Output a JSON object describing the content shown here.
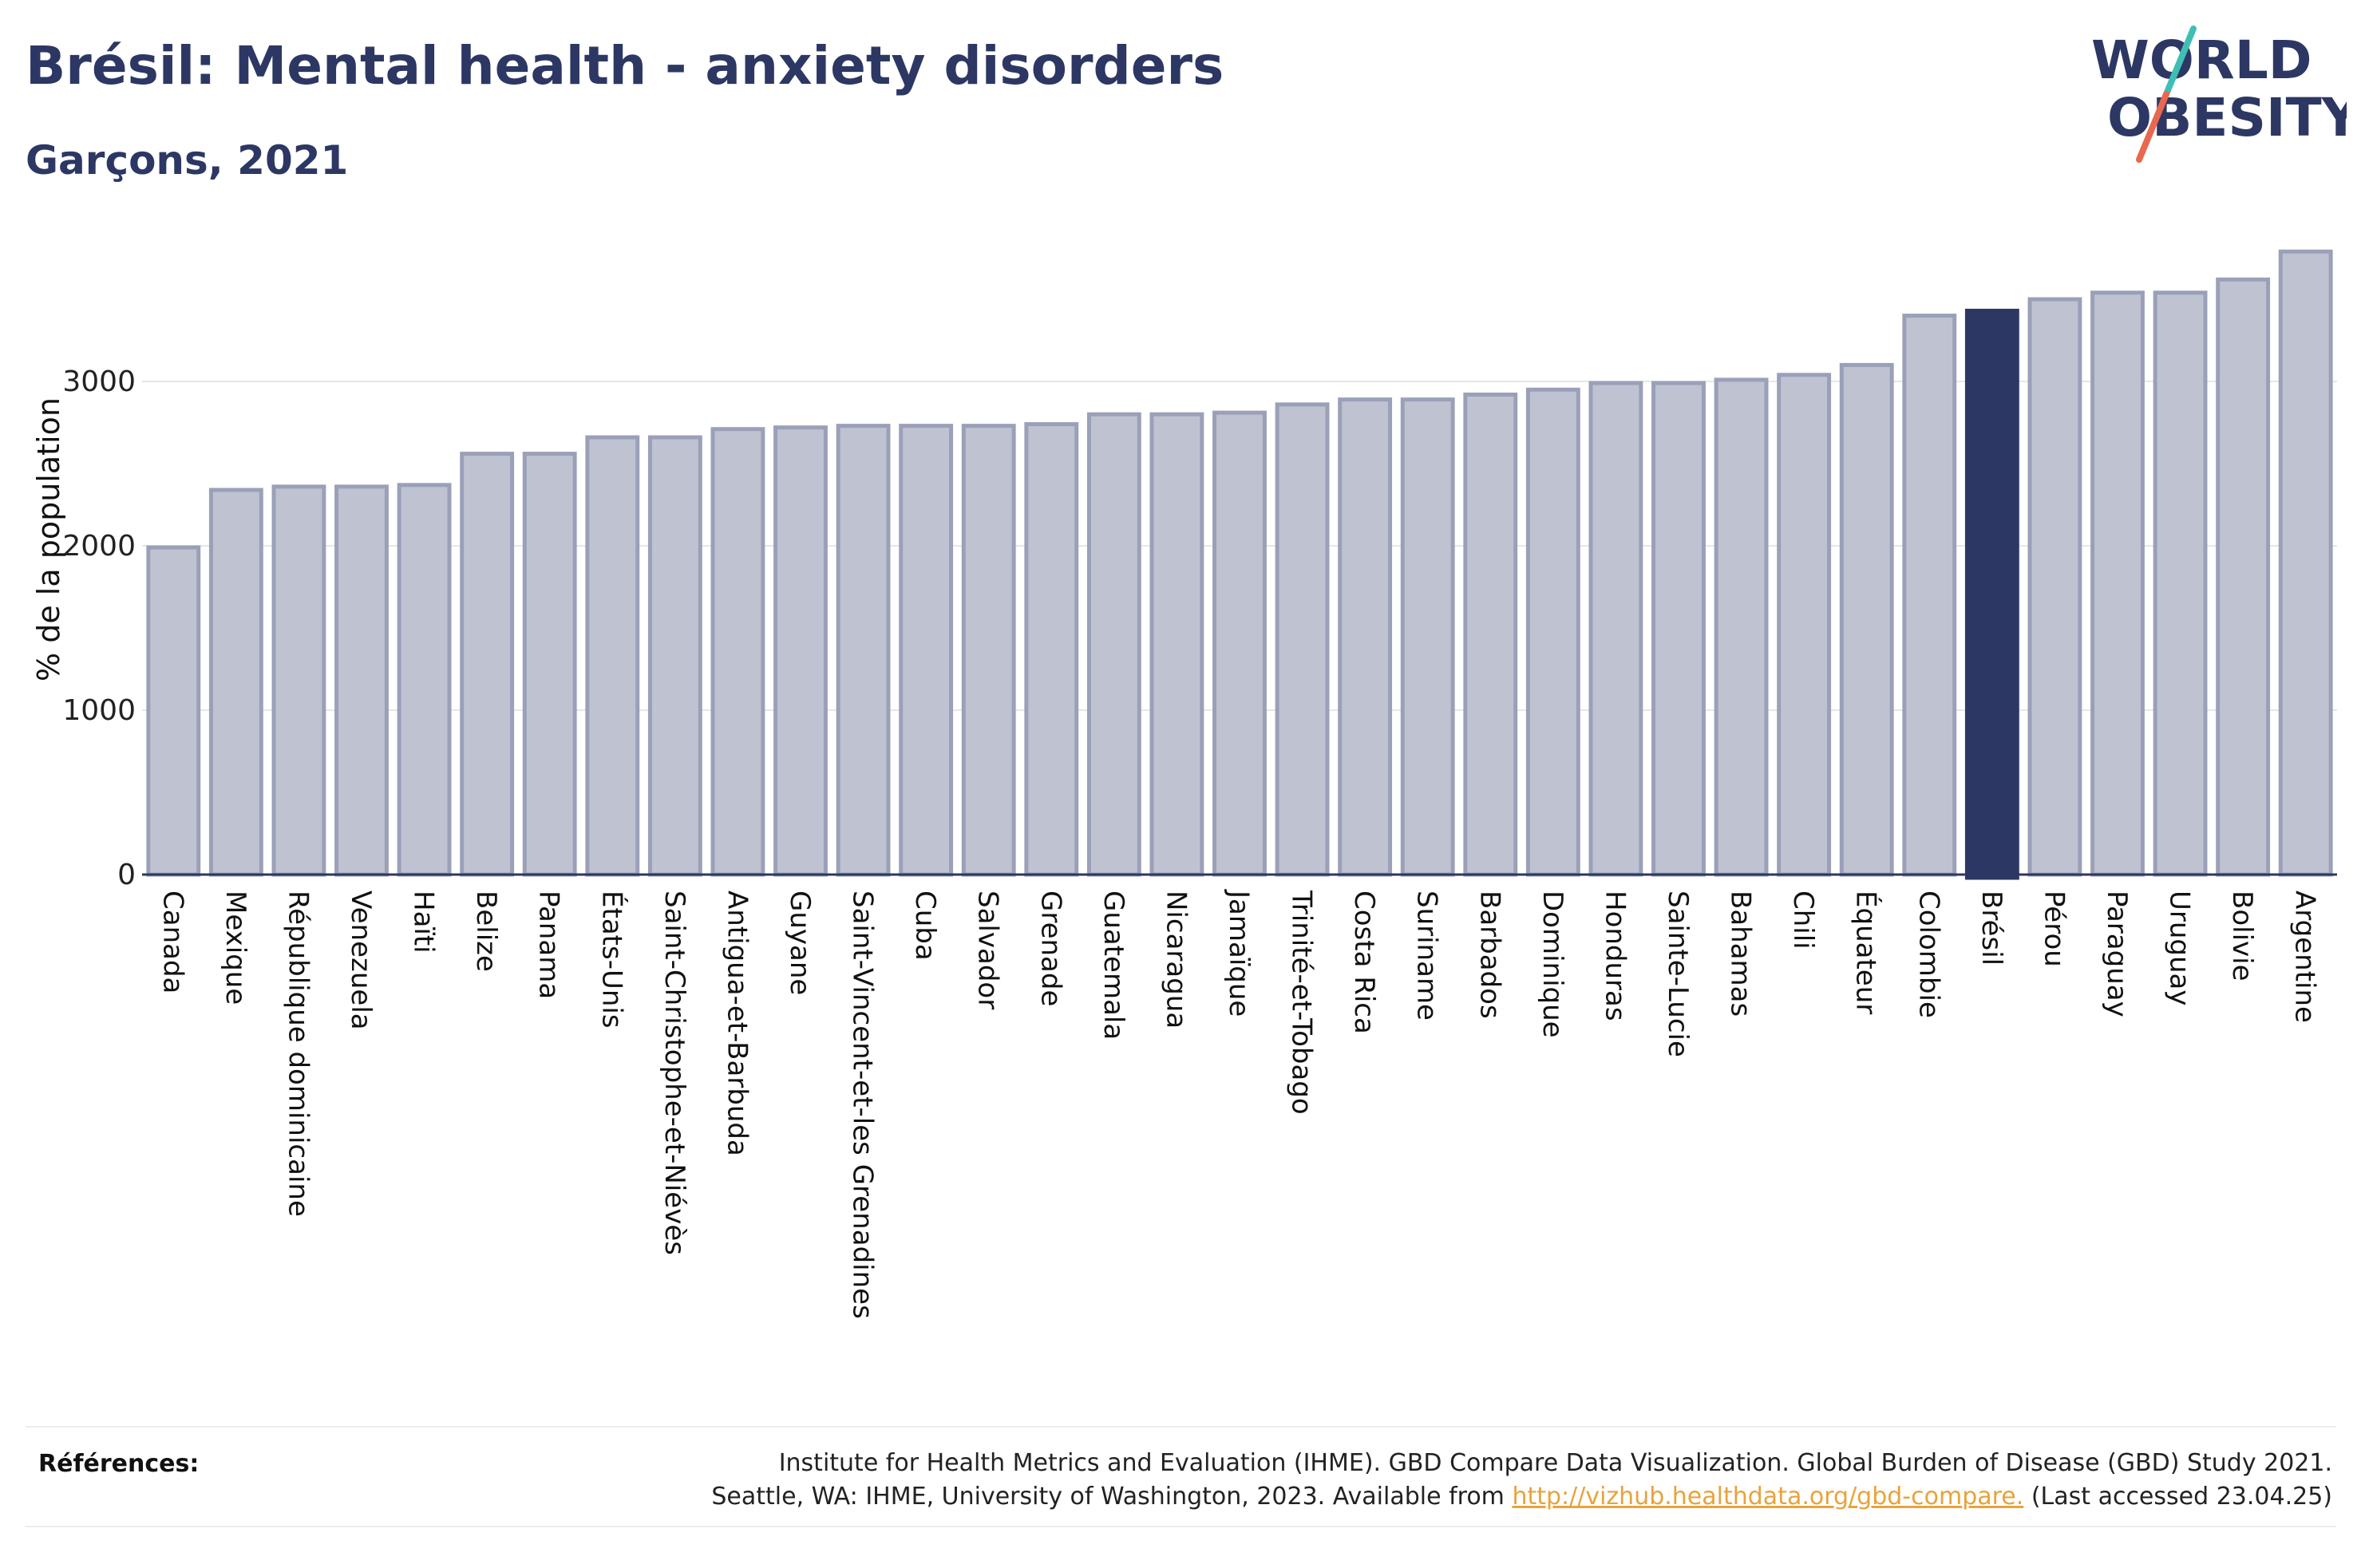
{
  "header": {
    "title": "Brésil: Mental health - anxiety disorders",
    "subtitle": "Garçons, 2021"
  },
  "logo": {
    "line1": "WORLD",
    "line2": "OBESITY",
    "text_color": "#2d3764",
    "slash_colors": [
      "#3fbfb3",
      "#e8684f"
    ]
  },
  "colors": {
    "bar_default": "#bfc3d1",
    "bar_default_stroke": "#9aa0b8",
    "bar_highlight": "#2d3764",
    "axis": "#2d3764",
    "grid": "#e6e6e6"
  },
  "chart_data": {
    "type": "bar",
    "title": "Brésil: Mental health - anxiety disorders",
    "subtitle": "Garçons, 2021",
    "xlabel": "",
    "ylabel": "% de la population",
    "ylim": [
      0,
      3800
    ],
    "yticks": [
      0,
      1000,
      2000,
      3000
    ],
    "grid": true,
    "highlight": "Brésil",
    "categories": [
      "Canada",
      "Mexique",
      "République dominicaine",
      "Venezuela",
      "Haïti",
      "Belize",
      "Panama",
      "États-Unis",
      "Saint-Christophe-et-Niévès",
      "Antigua-et-Barbuda",
      "Guyane",
      "Saint-Vincent-et-les Grenadines",
      "Cuba",
      "Salvador",
      "Grenade",
      "Guatemala",
      "Nicaragua",
      "Jamaïque",
      "Trinité-et-Tobago",
      "Costa Rica",
      "Suriname",
      "Barbados",
      "Dominique",
      "Honduras",
      "Sainte-Lucie",
      "Bahamas",
      "Chili",
      "Équateur",
      "Colombie",
      "Brésil",
      "Pérou",
      "Paraguay",
      "Uruguay",
      "Bolivie",
      "Argentine"
    ],
    "values": [
      1990,
      2340,
      2360,
      2360,
      2370,
      2560,
      2560,
      2660,
      2660,
      2710,
      2720,
      2730,
      2730,
      2730,
      2740,
      2800,
      2800,
      2810,
      2860,
      2890,
      2890,
      2920,
      2950,
      2990,
      2990,
      3010,
      3040,
      3100,
      3400,
      3430,
      3500,
      3540,
      3540,
      3620,
      3790
    ]
  },
  "references": {
    "label": "Références:",
    "line1": "Institute for Health Metrics and Evaluation (IHME). GBD Compare Data Visualization. Global Burden of Disease (GBD) Study 2021.",
    "line2_prefix": "Seattle, WA: IHME, University of Washington, 2023. Available from ",
    "link": "http://vizhub.healthdata.org/gbd-compare.",
    "line2_suffix": " (Last accessed 23.04.25)"
  }
}
